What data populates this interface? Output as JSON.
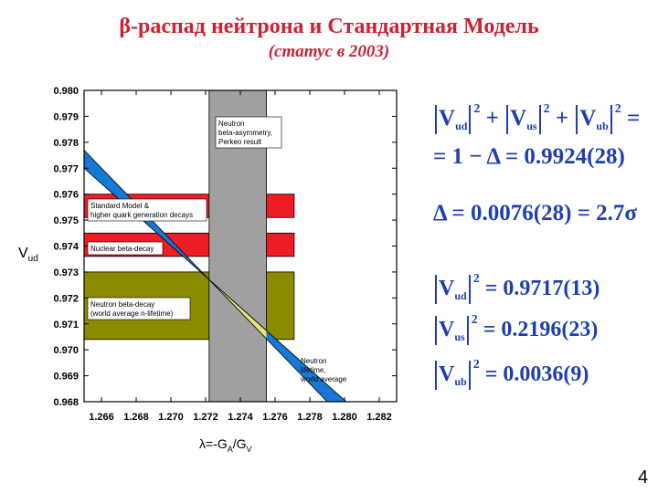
{
  "slide": {
    "title": "β-распад нейтрона и Стандартная Модель",
    "subtitle": "(статус в 2003)",
    "page_number": "4"
  },
  "chart_data": {
    "type": "area",
    "xlabel": "λ=-G",
    "xlabel_sub1": "A",
    "xlabel_mid": "/G",
    "xlabel_sub2": "V",
    "ylabel": "V",
    "ylabel_sub": "ud",
    "xlim": [
      1.265,
      1.283
    ],
    "ylim": [
      0.968,
      0.98
    ],
    "xticks": [
      "1.266",
      "1.268",
      "1.270",
      "1.272",
      "1.274",
      "1.276",
      "1.278",
      "1.280",
      "1.282"
    ],
    "yticks": [
      "0.968",
      "0.969",
      "0.970",
      "0.971",
      "0.972",
      "0.973",
      "0.974",
      "0.975",
      "0.976",
      "0.977",
      "0.978",
      "0.979",
      "0.980"
    ],
    "vertical_band": {
      "x_min": 1.2722,
      "x_max": 1.2755,
      "color": "#a0a0a0",
      "label": [
        "Neutron",
        "beta-asymmetry,",
        "Perkeo result"
      ]
    },
    "horizontal_bands": [
      {
        "y_min": 0.9751,
        "y_max": 0.976,
        "color": "#ee1c24",
        "label": [
          "Standard Model &",
          "higher quark generation decays"
        ]
      },
      {
        "y_min": 0.9736,
        "y_max": 0.9745,
        "color": "#ee1c24",
        "label": [
          "Nuclear beta-decay"
        ]
      },
      {
        "y_min": 0.9704,
        "y_max": 0.973,
        "color": "#8b8b00",
        "label": [
          "Neutron beta-decay",
          "(world average n-lifetime)"
        ]
      }
    ],
    "lifetime_band": {
      "color": "#1478d4",
      "overlap_color": "#e6e67a",
      "upper": [
        [
          1.265,
          0.9777
        ],
        [
          1.279,
          0.968
        ]
      ],
      "lower": [
        [
          1.265,
          0.977
        ],
        [
          1.2801,
          0.968
        ]
      ],
      "label": [
        "Neutron",
        "lifetime,",
        "world average"
      ]
    }
  },
  "formulas": {
    "sum_rhs": "=",
    "unitarity_line": "= 1 − Δ = 0.9924(28)",
    "delta_line": "Δ = 0.0076(28) = 2.7σ",
    "vud_value": "= 0.9717(13)",
    "vus_value": "= 0.2196(23)",
    "vub_value": "= 0.0036(9)",
    "V": "V",
    "sub_ud": "ud",
    "sub_us": "us",
    "sub_ub": "ub",
    "sq": "2",
    "plus": "+"
  },
  "colors": {
    "title": "#cc2233",
    "formula": "#1f3fb0"
  }
}
